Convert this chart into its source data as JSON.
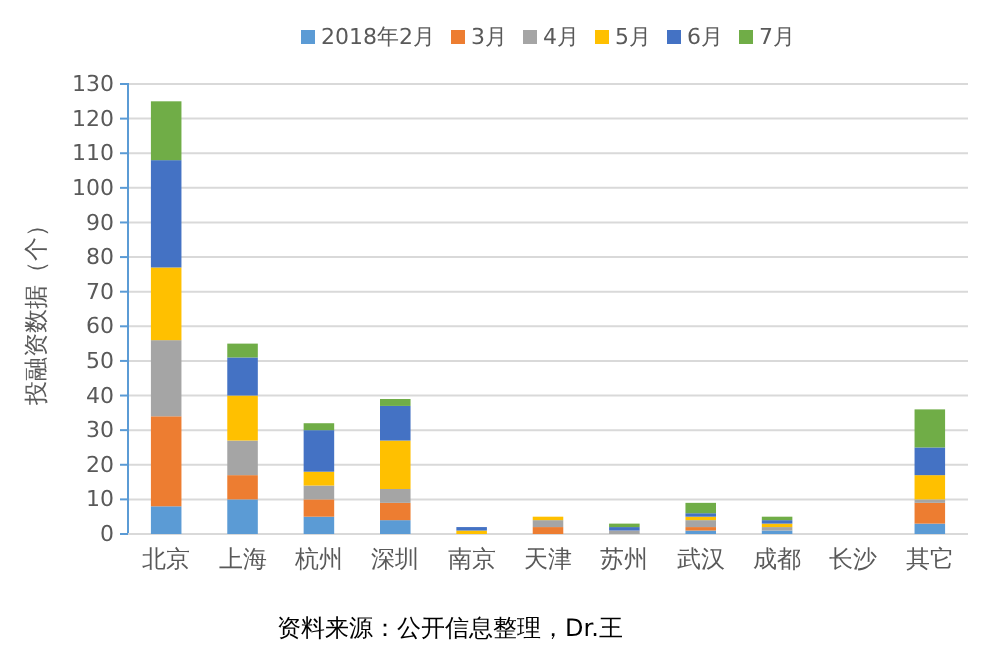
{
  "chart_data": {
    "type": "bar",
    "stacked": true,
    "ylabel": "投融资数据（个）",
    "categories": [
      "北京",
      "上海",
      "杭州",
      "深圳",
      "南京",
      "天津",
      "苏州",
      "武汉",
      "成都",
      "长沙",
      "其它"
    ],
    "series": [
      {
        "name": "2018年2月",
        "color": "#5b9bd5",
        "values": [
          8,
          10,
          5,
          4,
          0,
          0,
          0,
          1,
          1,
          0,
          3
        ]
      },
      {
        "name": "3月",
        "color": "#ed7d31",
        "values": [
          26,
          7,
          5,
          5,
          0,
          2,
          0,
          1,
          0,
          0,
          6
        ]
      },
      {
        "name": "4月",
        "color": "#a5a5a5",
        "values": [
          22,
          10,
          4,
          4,
          0,
          2,
          1,
          2,
          1,
          0,
          1
        ]
      },
      {
        "name": "5月",
        "color": "#ffc000",
        "values": [
          21,
          13,
          4,
          14,
          1,
          1,
          0,
          1,
          1,
          0,
          7
        ]
      },
      {
        "name": "6月",
        "color": "#4472c4",
        "values": [
          31,
          11,
          12,
          10,
          1,
          0,
          1,
          1,
          1,
          0,
          8
        ]
      },
      {
        "name": "7月",
        "color": "#70ad47",
        "values": [
          17,
          4,
          2,
          2,
          0,
          0,
          1,
          3,
          1,
          0,
          11
        ]
      }
    ],
    "ylim": [
      0,
      130
    ],
    "yticks": [
      0,
      10,
      20,
      30,
      40,
      50,
      60,
      70,
      80,
      90,
      100,
      110,
      120,
      130
    ],
    "grid": "y",
    "legend": "top",
    "annotations": [
      "资料来源：公开信息整理，Dr.王"
    ]
  }
}
